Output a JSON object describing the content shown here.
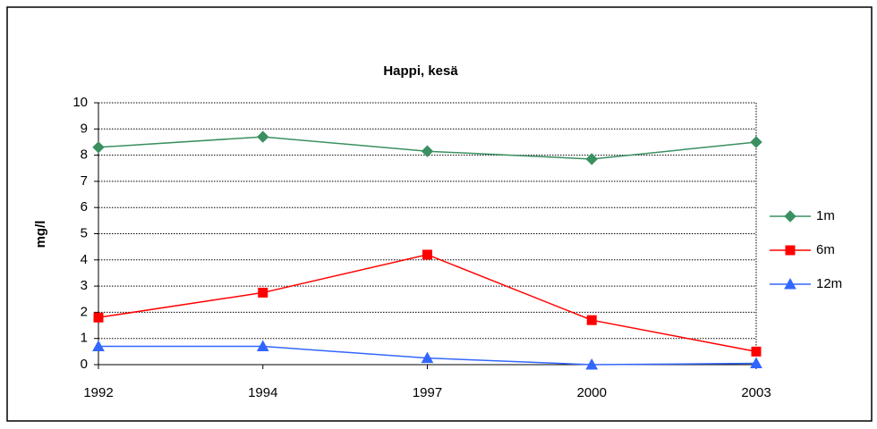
{
  "chart_data": {
    "type": "line",
    "title": "Happi, kesä",
    "y_label": "mg/l",
    "categories": [
      "1992",
      "1994",
      "1997",
      "2000",
      "2003"
    ],
    "series": [
      {
        "name": "1m",
        "color": "#3a9060",
        "marker": "diamond",
        "values": [
          8.3,
          8.7,
          8.15,
          7.85,
          8.5
        ]
      },
      {
        "name": "6m",
        "color": "#ff0000",
        "marker": "square",
        "values": [
          1.8,
          2.75,
          4.2,
          1.7,
          0.5
        ]
      },
      {
        "name": "12m",
        "color": "#3366ff",
        "marker": "triangle",
        "values": [
          0.7,
          0.7,
          0.25,
          0.0,
          0.05
        ]
      }
    ],
    "ylim": [
      0,
      10
    ],
    "yticks": [
      0,
      1,
      2,
      3,
      4,
      5,
      6,
      7,
      8,
      9,
      10
    ],
    "grid": true,
    "legend": "right"
  }
}
